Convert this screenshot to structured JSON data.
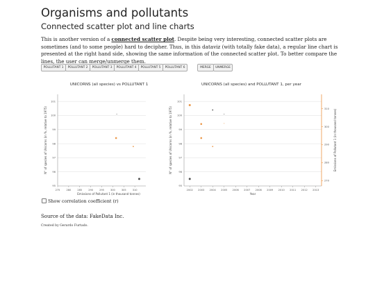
{
  "header": {
    "title": "Organisms and pollutants",
    "subtitle": "Connected scatter plot and line charts"
  },
  "intro": {
    "text_before": "This is another version of a ",
    "link": "connected scatter plot",
    "text_after": ". Despite being very interesting, connected scatter plots are sometimes (and to some people) hard to decipher. Thus, in this dataviz (with totally fake data), a regular line chart is presented at the right hand side, showing the same information of the connected scatter plot. To better compare the lines, the user can merge/unmerge them."
  },
  "buttons": {
    "pollutants": [
      "POLLUTANT 1",
      "POLLUTANT 2",
      "POLLUTANT 3",
      "POLLUTANT 4",
      "POLLUTANT 5",
      "POLLUTANT 6"
    ],
    "merge": "MERGE",
    "unmerge": "UNMERGE"
  },
  "corr_label": "Show correlation coefficient (r)",
  "source": "Source of the data: FakeData Inc.",
  "created": "Created by Gerardo Furtado.",
  "colors": {
    "organism": "#333333",
    "pollutant": "#e8862a",
    "grid": "#dddddd"
  },
  "chart_data": [
    {
      "type": "scatter",
      "title": "UNICORNS (all species) vs POLLUTANT 1",
      "xlabel": "Emissions of Pollutant 1 (in thousand tonnes)",
      "ylabel": "N° of species of Unicorns (in %, relative to 1975)",
      "xlim": [
        275,
        315
      ],
      "ylim": [
        95,
        101.5
      ],
      "xticks": [
        275,
        280,
        285,
        290,
        295,
        300,
        305,
        310
      ],
      "yticks": [
        95,
        96,
        97,
        98,
        99,
        100,
        101
      ],
      "points": [
        {
          "x": 301.8,
          "y": 100.1
        },
        {
          "x": 301.5,
          "y": 98.4
        },
        {
          "x": 309.3,
          "y": 97.8
        },
        {
          "x": 312,
          "y": 95.5
        }
      ]
    },
    {
      "type": "line",
      "title": "UNICORNS (all species) and POLLUTANT 1, per year",
      "xlabel": "Year",
      "ylabel": "N° of species of Unicorns (in %, relative to 1975)",
      "y2label": "Emissions of Pollutant 1 (in thousand tonnes)",
      "xlim": [
        2001.5,
        2013.5
      ],
      "ylim": [
        95,
        101.5
      ],
      "y2lim": [
        267,
        318
      ],
      "xticks": [
        2002,
        2003,
        2004,
        2005,
        2006,
        2007,
        2008,
        2009,
        2010,
        2011,
        2012,
        2013
      ],
      "yticks": [
        95,
        96,
        97,
        98,
        99,
        100,
        101
      ],
      "y2ticks": [
        270,
        280,
        290,
        300,
        310
      ],
      "series": [
        {
          "x": [
            2002,
            2003,
            2004,
            2005
          ],
          "y": [
            95.5,
            98.4,
            97.8,
            100.1
          ]
        },
        {
          "x": [
            2002,
            2003,
            2004,
            2005
          ],
          "y": [
            312,
            301.5,
            309.3,
            301.8
          ]
        }
      ]
    }
  ]
}
